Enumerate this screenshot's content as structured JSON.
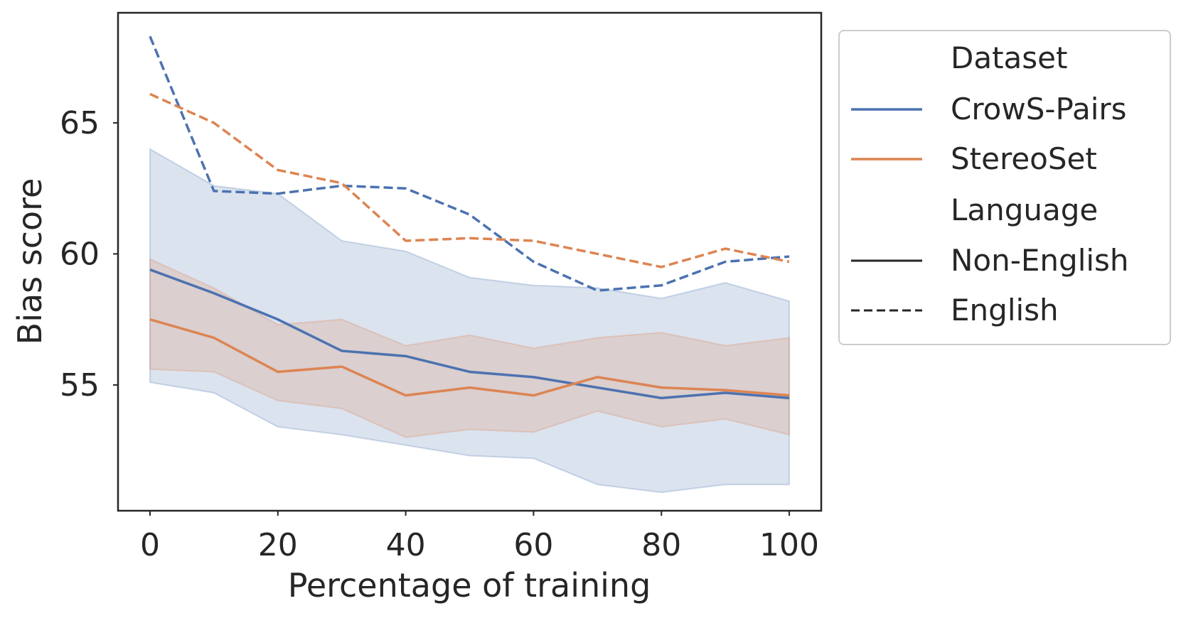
{
  "chart_data": {
    "type": "line",
    "title": "",
    "xlabel": "Percentage of training",
    "ylabel": "Bias score",
    "x": [
      0,
      10,
      20,
      30,
      40,
      50,
      60,
      70,
      80,
      90,
      100
    ],
    "xlim": [
      -5,
      105
    ],
    "ylim": [
      50.2,
      69.2
    ],
    "xticks": [
      0,
      20,
      40,
      60,
      80,
      100
    ],
    "yticks": [
      55,
      60,
      65
    ],
    "grid": false,
    "legend": {
      "placement": "outside-right",
      "dataset_title": "Dataset",
      "language_title": "Language",
      "entries": [
        {
          "label": "CrowS-Pairs",
          "kind": "color",
          "color": "#4c72b0"
        },
        {
          "label": "StereoSet",
          "kind": "color",
          "color": "#dd8452"
        },
        {
          "label": "Non-English",
          "kind": "style",
          "style": "solid"
        },
        {
          "label": "English",
          "kind": "style",
          "style": "dashed"
        }
      ]
    },
    "bands": [
      {
        "name": "CrowS-Pairs Non-English CI",
        "color": "#4c72b0",
        "upper": [
          64.0,
          62.6,
          62.3,
          60.5,
          60.1,
          59.1,
          58.8,
          58.7,
          58.3,
          58.9,
          58.2
        ],
        "lower": [
          55.1,
          54.7,
          53.4,
          53.1,
          52.7,
          52.3,
          52.2,
          51.2,
          50.9,
          51.2,
          51.2
        ]
      },
      {
        "name": "StereoSet Non-English CI",
        "color": "#dd8452",
        "upper": [
          59.8,
          58.7,
          57.3,
          57.5,
          56.5,
          56.9,
          56.4,
          56.8,
          57.0,
          56.5,
          56.8
        ],
        "lower": [
          55.6,
          55.5,
          54.4,
          54.1,
          53.0,
          53.3,
          53.2,
          54.0,
          53.4,
          53.7,
          53.1
        ]
      }
    ],
    "series": [
      {
        "name": "CrowS-Pairs",
        "language": "Non-English",
        "color": "#4c72b0",
        "dash": "solid",
        "values": [
          59.4,
          58.5,
          57.5,
          56.3,
          56.1,
          55.5,
          55.3,
          54.9,
          54.5,
          54.7,
          54.5
        ]
      },
      {
        "name": "StereoSet",
        "language": "Non-English",
        "color": "#dd8452",
        "dash": "solid",
        "values": [
          57.5,
          56.8,
          55.5,
          55.7,
          54.6,
          54.9,
          54.6,
          55.3,
          54.9,
          54.8,
          54.6
        ]
      },
      {
        "name": "CrowS-Pairs",
        "language": "English",
        "color": "#4c72b0",
        "dash": "dashed",
        "values": [
          68.3,
          62.4,
          62.3,
          62.6,
          62.5,
          61.5,
          59.7,
          58.6,
          58.8,
          59.7,
          59.9
        ]
      },
      {
        "name": "StereoSet",
        "language": "English",
        "color": "#dd8452",
        "dash": "dashed",
        "values": [
          66.1,
          65.0,
          63.2,
          62.7,
          60.5,
          60.6,
          60.5,
          60.0,
          59.5,
          60.2,
          59.7
        ]
      }
    ]
  }
}
